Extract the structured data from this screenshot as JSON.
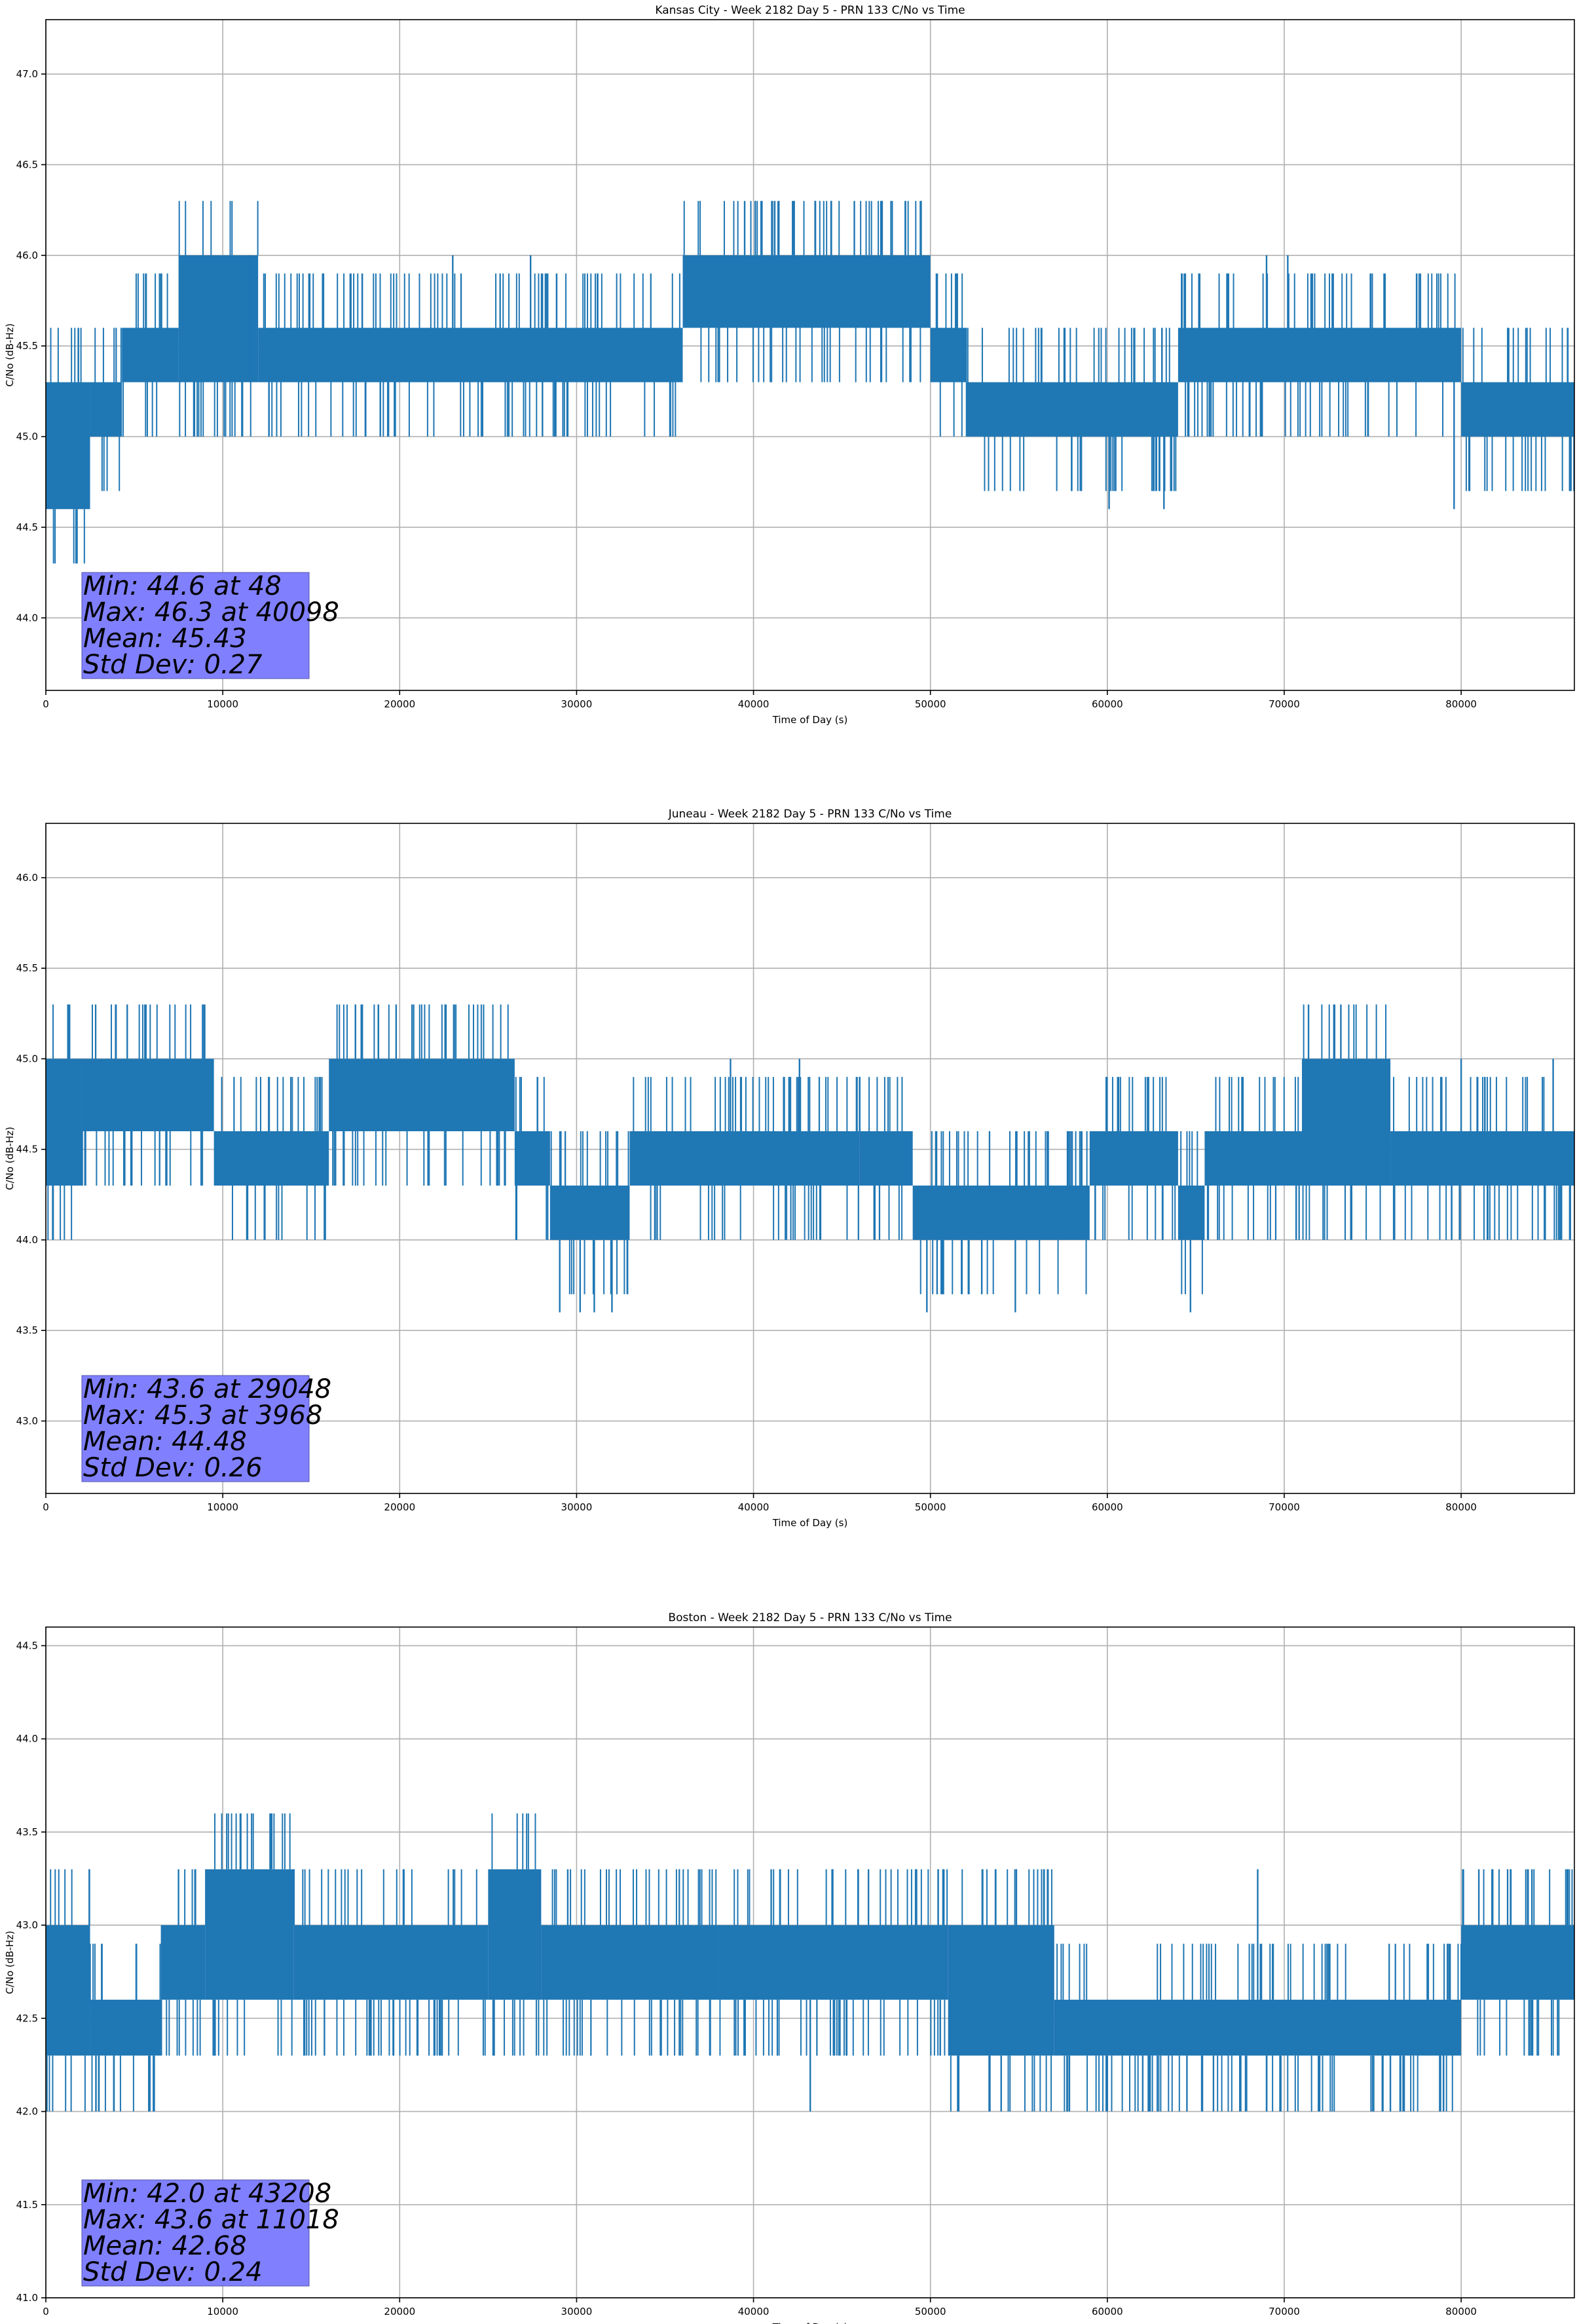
{
  "chart_data": [
    {
      "type": "line",
      "title": "Kansas City - Week 2182 Day 5 - PRN 133 C/No vs Time",
      "xlabel": "Time of Day (s)",
      "ylabel": "C/No (dB-Hz)",
      "xlim": [
        0,
        86400
      ],
      "ylim": [
        43.6,
        47.3
      ],
      "xticks": [
        0,
        10000,
        20000,
        30000,
        40000,
        50000,
        60000,
        70000,
        80000
      ],
      "yticks": [
        44.0,
        44.5,
        45.0,
        45.5,
        46.0,
        46.5,
        47.0
      ],
      "grid": true,
      "series_color": "#1f77b4",
      "stats": [
        "Min: 44.6 at 48",
        "Max: 46.3 at 40098",
        "Mean: 45.43",
        "Std Dev: 0.27"
      ],
      "segments": [
        {
          "x": [
            0,
            2500
          ],
          "lo": 44.6,
          "hi": 45.3
        },
        {
          "x": [
            2500,
            4300
          ],
          "lo": 45.0,
          "hi": 45.3
        },
        {
          "x": [
            4300,
            7500
          ],
          "lo": 45.3,
          "hi": 45.6
        },
        {
          "x": [
            7500,
            12000
          ],
          "lo": 45.3,
          "hi": 46.0
        },
        {
          "x": [
            12000,
            36000
          ],
          "lo": 45.3,
          "hi": 45.6
        },
        {
          "x": [
            36000,
            50000
          ],
          "lo": 45.6,
          "hi": 46.0
        },
        {
          "x": [
            50000,
            52000
          ],
          "lo": 45.3,
          "hi": 45.6
        },
        {
          "x": [
            52000,
            64000
          ],
          "lo": 45.0,
          "hi": 45.3
        },
        {
          "x": [
            64000,
            80000
          ],
          "lo": 45.3,
          "hi": 45.6
        },
        {
          "x": [
            80000,
            86400
          ],
          "lo": 45.0,
          "hi": 45.3
        }
      ],
      "spikes": [
        [
          40098,
          46.3
        ],
        [
          39500,
          46.3
        ],
        [
          41200,
          46.3
        ],
        [
          42300,
          46.3
        ],
        [
          43500,
          46.3
        ],
        [
          45700,
          46.3
        ],
        [
          47200,
          46.3
        ],
        [
          48,
          44.6
        ],
        [
          1000,
          44.6
        ],
        [
          1900,
          44.6
        ],
        [
          60100,
          44.6
        ],
        [
          63200,
          44.6
        ],
        [
          79600,
          44.6
        ],
        [
          23000,
          46.0
        ],
        [
          27400,
          46.0
        ],
        [
          69000,
          46.0
        ],
        [
          70200,
          46.0
        ],
        [
          11500,
          46.0
        ]
      ]
    },
    {
      "type": "line",
      "title": "Juneau - Week 2182 Day 5 - PRN 133 C/No vs Time",
      "xlabel": "Time of Day (s)",
      "ylabel": "C/No (dB-Hz)",
      "xlim": [
        0,
        86400
      ],
      "ylim": [
        42.6,
        46.3
      ],
      "xticks": [
        0,
        10000,
        20000,
        30000,
        40000,
        50000,
        60000,
        70000,
        80000
      ],
      "yticks": [
        43.0,
        43.5,
        44.0,
        44.5,
        45.0,
        45.5,
        46.0
      ],
      "grid": true,
      "series_color": "#1f77b4",
      "stats": [
        "Min: 43.6 at 29048",
        "Max: 45.3 at 3968",
        "Mean: 44.48",
        "Std Dev: 0.26"
      ],
      "segments": [
        {
          "x": [
            0,
            2000
          ],
          "lo": 44.3,
          "hi": 45.0
        },
        {
          "x": [
            2000,
            9500
          ],
          "lo": 44.6,
          "hi": 45.0
        },
        {
          "x": [
            9500,
            16000
          ],
          "lo": 44.3,
          "hi": 44.6
        },
        {
          "x": [
            16000,
            26500
          ],
          "lo": 44.6,
          "hi": 45.0
        },
        {
          "x": [
            26500,
            28500
          ],
          "lo": 44.3,
          "hi": 44.6
        },
        {
          "x": [
            28500,
            33000
          ],
          "lo": 44.0,
          "hi": 44.3
        },
        {
          "x": [
            33000,
            46000
          ],
          "lo": 44.3,
          "hi": 44.6
        },
        {
          "x": [
            46000,
            49000
          ],
          "lo": 44.3,
          "hi": 44.6
        },
        {
          "x": [
            49000,
            59000
          ],
          "lo": 44.0,
          "hi": 44.3
        },
        {
          "x": [
            59000,
            64000
          ],
          "lo": 44.3,
          "hi": 44.6
        },
        {
          "x": [
            64000,
            65500
          ],
          "lo": 44.0,
          "hi": 44.3
        },
        {
          "x": [
            65500,
            71000
          ],
          "lo": 44.3,
          "hi": 44.6
        },
        {
          "x": [
            71000,
            76000
          ],
          "lo": 44.3,
          "hi": 45.0
        },
        {
          "x": [
            76000,
            86400
          ],
          "lo": 44.3,
          "hi": 44.6
        }
      ],
      "spikes": [
        [
          3968,
          45.3
        ],
        [
          4600,
          45.3
        ],
        [
          5600,
          45.3
        ],
        [
          17500,
          45.3
        ],
        [
          18800,
          45.3
        ],
        [
          19800,
          45.3
        ],
        [
          20700,
          45.3
        ],
        [
          73200,
          45.3
        ],
        [
          29048,
          43.6
        ],
        [
          30200,
          43.6
        ],
        [
          31000,
          43.6
        ],
        [
          32000,
          43.6
        ],
        [
          49800,
          43.6
        ],
        [
          54800,
          43.6
        ],
        [
          64700,
          43.6
        ],
        [
          38700,
          45.0
        ],
        [
          42600,
          45.0
        ],
        [
          80000,
          45.0
        ],
        [
          85200,
          45.0
        ]
      ]
    },
    {
      "type": "line",
      "title": "Boston - Week 2182 Day 5 - PRN 133 C/No vs Time",
      "xlabel": "Time of Day (s)",
      "ylabel": "C/No (dB-Hz)",
      "xlim": [
        0,
        86400
      ],
      "ylim": [
        41.0,
        44.6
      ],
      "xticks": [
        0,
        10000,
        20000,
        30000,
        40000,
        50000,
        60000,
        70000,
        80000
      ],
      "yticks": [
        41.0,
        41.5,
        42.0,
        42.5,
        43.0,
        43.5,
        44.0,
        44.5
      ],
      "grid": true,
      "series_color": "#1f77b4",
      "stats": [
        "Min: 42.0 at 43208",
        "Max: 43.6 at 11018",
        "Mean: 42.68",
        "Std Dev: 0.24"
      ],
      "segments": [
        {
          "x": [
            0,
            2500
          ],
          "lo": 42.3,
          "hi": 43.0
        },
        {
          "x": [
            2500,
            6500
          ],
          "lo": 42.3,
          "hi": 42.6
        },
        {
          "x": [
            6500,
            9000
          ],
          "lo": 42.6,
          "hi": 43.0
        },
        {
          "x": [
            9000,
            14000
          ],
          "lo": 42.6,
          "hi": 43.3
        },
        {
          "x": [
            14000,
            25000
          ],
          "lo": 42.6,
          "hi": 43.0
        },
        {
          "x": [
            25000,
            28000
          ],
          "lo": 42.6,
          "hi": 43.3
        },
        {
          "x": [
            28000,
            38000
          ],
          "lo": 42.6,
          "hi": 43.0
        },
        {
          "x": [
            38000,
            51000
          ],
          "lo": 42.6,
          "hi": 43.0
        },
        {
          "x": [
            51000,
            57000
          ],
          "lo": 42.3,
          "hi": 43.0
        },
        {
          "x": [
            57000,
            80000
          ],
          "lo": 42.3,
          "hi": 42.6
        },
        {
          "x": [
            80000,
            86400
          ],
          "lo": 42.6,
          "hi": 43.0
        }
      ],
      "spikes": [
        [
          11018,
          43.6
        ],
        [
          43208,
          42.0
        ],
        [
          60000,
          42.0
        ],
        [
          62000,
          42.0
        ],
        [
          64500,
          42.0
        ],
        [
          66000,
          42.0
        ],
        [
          69000,
          42.0
        ],
        [
          72000,
          42.0
        ],
        [
          76000,
          42.0
        ],
        [
          79000,
          42.0
        ],
        [
          54000,
          42.0
        ],
        [
          7500,
          43.3
        ],
        [
          29500,
          43.3
        ],
        [
          41000,
          43.3
        ],
        [
          46500,
          43.3
        ],
        [
          68500,
          43.3
        ],
        [
          81000,
          43.3
        ],
        [
          84000,
          43.3
        ],
        [
          86000,
          43.3
        ]
      ]
    }
  ]
}
